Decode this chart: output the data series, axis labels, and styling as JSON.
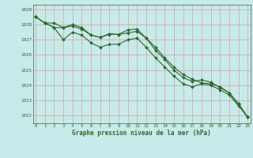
{
  "title": "Graphe pression niveau de la mer (hPa)",
  "bg_color": "#c8eaea",
  "grid_color": "#d4a0a0",
  "line_color": "#2d6a2d",
  "marker_color": "#2d6a2d",
  "ylim": [
    1021.5,
    1029.3
  ],
  "xlim": [
    -0.3,
    23.3
  ],
  "yticks": [
    1022,
    1023,
    1024,
    1025,
    1026,
    1027,
    1028,
    1029
  ],
  "xticks": [
    0,
    1,
    2,
    3,
    4,
    5,
    6,
    7,
    8,
    9,
    10,
    11,
    12,
    13,
    14,
    15,
    16,
    17,
    18,
    19,
    20,
    21,
    22,
    23
  ],
  "series1": [
    1028.5,
    1028.1,
    1028.1,
    1027.8,
    1028.0,
    1027.8,
    1027.3,
    1027.15,
    1027.4,
    1027.35,
    1027.45,
    1027.55,
    1027.1,
    1026.5,
    1025.8,
    1025.2,
    1024.7,
    1024.4,
    1024.15,
    1024.1,
    1023.9,
    1023.5,
    1022.8,
    1021.9
  ],
  "series2": [
    1028.5,
    1028.1,
    1027.8,
    1027.8,
    1027.9,
    1027.7,
    1027.3,
    1027.15,
    1027.35,
    1027.35,
    1027.65,
    1027.7,
    1027.1,
    1026.3,
    1025.7,
    1025.0,
    1024.5,
    1024.25,
    1024.35,
    1024.2,
    1023.85,
    1023.5,
    1022.75,
    1021.9
  ],
  "series3": [
    1028.5,
    1028.1,
    1027.8,
    1027.0,
    1027.5,
    1027.3,
    1026.8,
    1026.5,
    1026.7,
    1026.7,
    1027.0,
    1027.1,
    1026.5,
    1025.8,
    1025.2,
    1024.6,
    1024.1,
    1023.9,
    1024.1,
    1024.0,
    1023.7,
    1023.35,
    1022.65,
    1021.9
  ],
  "figsize": [
    3.2,
    2.0
  ],
  "dpi": 100,
  "title_fontsize": 5.5,
  "tick_fontsize": 4.2,
  "linewidth": 0.8,
  "markersize": 2.0
}
